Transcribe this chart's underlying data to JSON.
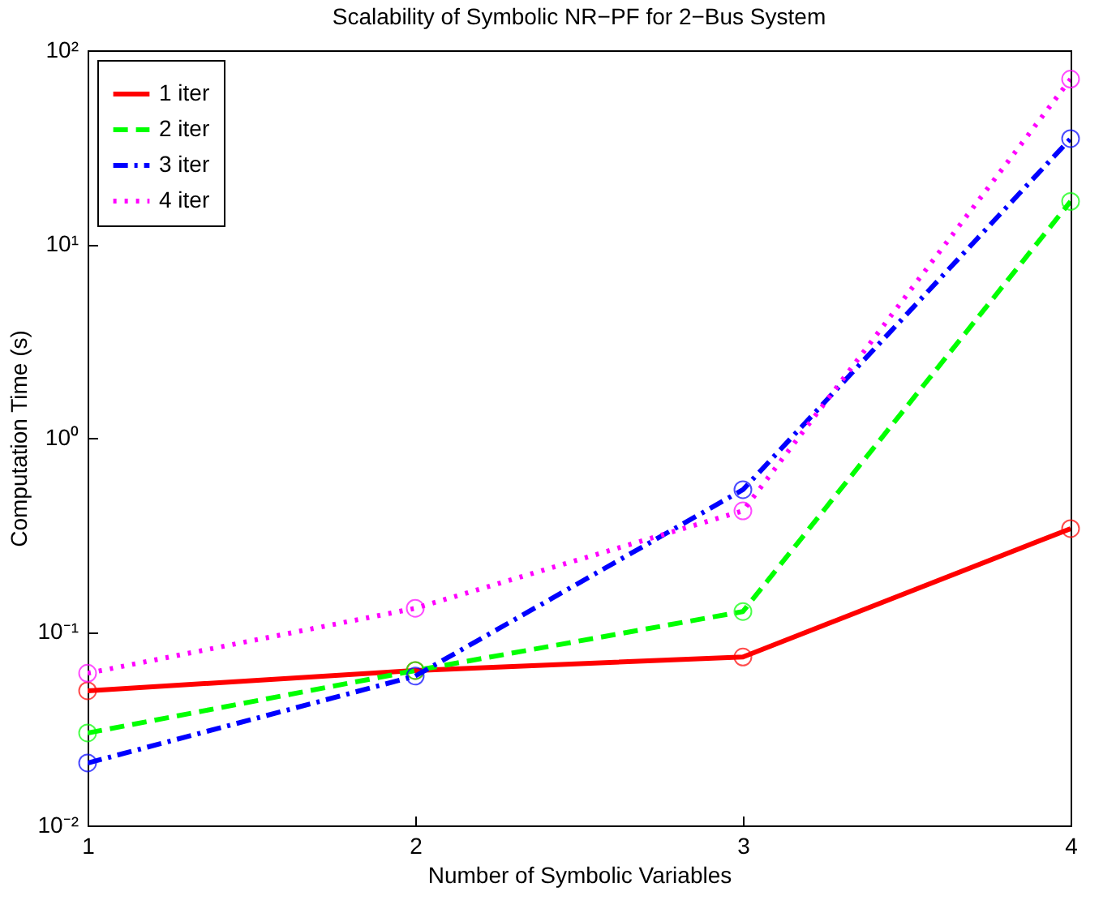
{
  "chart_data": {
    "type": "line",
    "title": "Scalability of Symbolic NR−PF for 2−Bus System",
    "xlabel": "Number of Symbolic Variables",
    "ylabel": "Computation Time (s)",
    "x": [
      1,
      2,
      3,
      4
    ],
    "xlim": [
      1,
      4
    ],
    "xticks": [
      1,
      2,
      3,
      4
    ],
    "log": "y",
    "ylim": [
      0.01,
      100
    ],
    "yticks": [
      {
        "value": 0.01,
        "label": "10⁻²"
      },
      {
        "value": 0.1,
        "label": "10⁻¹"
      },
      {
        "value": 1,
        "label": "10⁰"
      },
      {
        "value": 10,
        "label": "10¹"
      },
      {
        "value": 100,
        "label": "10²"
      }
    ],
    "grid": false,
    "legend": "top left",
    "marker": "circle",
    "series": [
      {
        "name": "1 iter",
        "color": "#ff0000",
        "line_style": "solid",
        "values": [
          0.0495,
          0.063,
          0.074,
          0.34
        ]
      },
      {
        "name": "2 iter",
        "color": "#00ff00",
        "line_style": "dashed",
        "values": [
          0.03,
          0.063,
          0.127,
          16.6
        ]
      },
      {
        "name": "3 iter",
        "color": "#0000ff",
        "line_style": "dashdot",
        "values": [
          0.021,
          0.059,
          0.54,
          35
        ]
      },
      {
        "name": "4 iter",
        "color": "#ff00ff",
        "line_style": "dotted",
        "values": [
          0.061,
          0.132,
          0.42,
          71
        ]
      }
    ]
  }
}
